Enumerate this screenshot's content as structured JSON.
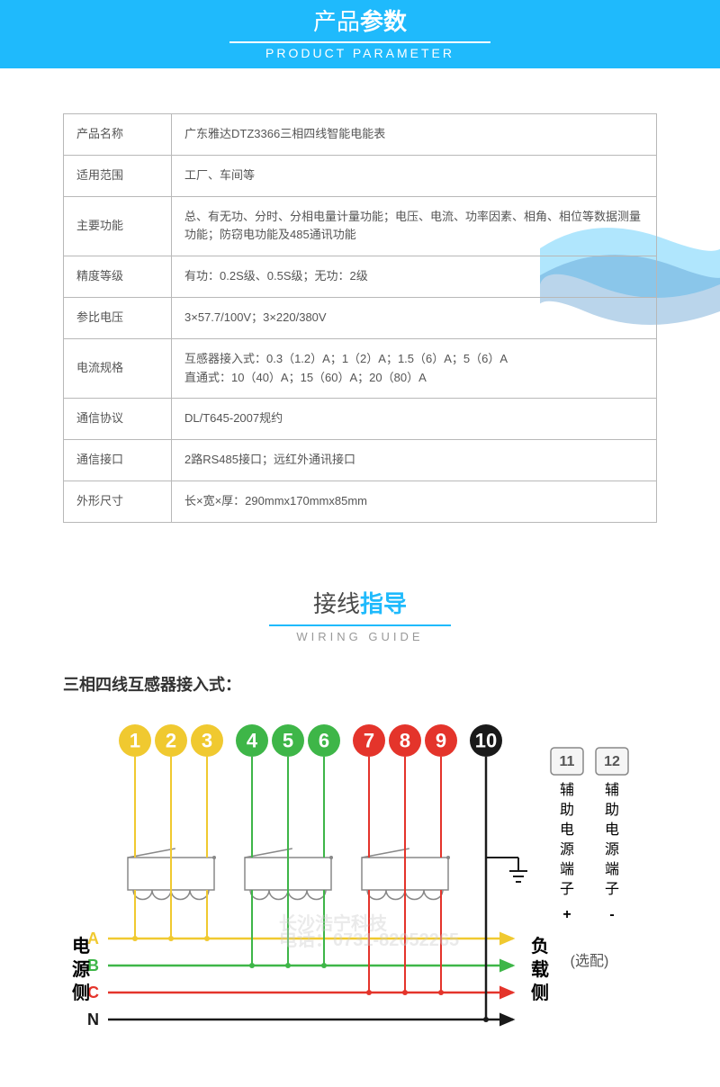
{
  "header": {
    "title_pre": "产品",
    "title_bold": "参数",
    "sub": "PRODUCT  PARAMETER"
  },
  "spec_rows": [
    {
      "label": "产品名称",
      "value": "广东雅达DTZ3366三相四线智能电能表"
    },
    {
      "label": "适用范围",
      "value": "工厂、车间等"
    },
    {
      "label": "主要功能",
      "value": "总、有无功、分时、分相电量计量功能；电压、电流、功率因素、相角、相位等数据测量功能；防窃电功能及485通讯功能"
    },
    {
      "label": "精度等级",
      "value": "有功：0.2S级、0.5S级；无功：2级"
    },
    {
      "label": "参比电压",
      "value": "3×57.7/100V；3×220/380V"
    },
    {
      "label": "电流规格",
      "value": "互感器接入式：0.3（1.2）A；1（2）A；1.5（6）A；5（6）A\n直通式：10（40）A；15（60）A；20（80）A"
    },
    {
      "label": "通信协议",
      "value": "DL/T645-2007规约"
    },
    {
      "label": "通信接口",
      "value": "2路RS485接口；远红外通讯接口"
    },
    {
      "label": "外形尺寸",
      "value": "长×宽×厚：290mmx170mmx85mm"
    }
  ],
  "wiring": {
    "title_pre": "接线",
    "title_accent": "指导",
    "sub": "WIRING  GUIDE",
    "subtitle": "三相四线互感器接入式：",
    "terminals": [
      {
        "n": "1",
        "color": "#f0c930"
      },
      {
        "n": "2",
        "color": "#f0c930"
      },
      {
        "n": "3",
        "color": "#f0c930"
      },
      {
        "n": "4",
        "color": "#3eb648"
      },
      {
        "n": "5",
        "color": "#3eb648"
      },
      {
        "n": "6",
        "color": "#3eb648"
      },
      {
        "n": "7",
        "color": "#e4342b"
      },
      {
        "n": "8",
        "color": "#e4342b"
      },
      {
        "n": "9",
        "color": "#e4342b"
      },
      {
        "n": "10",
        "color": "#1a1a1a"
      }
    ],
    "aux": [
      {
        "n": "11",
        "label": "辅助电源端子",
        "sign": "+"
      },
      {
        "n": "12",
        "label": "辅助电源端子",
        "sign": "-"
      }
    ],
    "aux_note": "(选配)",
    "phases": [
      "A",
      "B",
      "C",
      "N"
    ],
    "left_label": "电源侧",
    "right_label": "负载侧",
    "colors": {
      "yellow": "#f0c930",
      "green": "#3eb648",
      "red": "#e4342b",
      "black": "#1a1a1a",
      "gray": "#888888"
    },
    "watermark": {
      "text": "长沙浩宁科技",
      "phone": "电话：0731-82052265"
    }
  }
}
